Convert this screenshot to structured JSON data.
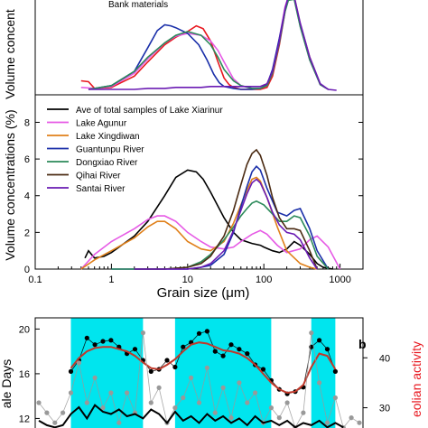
{
  "chart_data": [
    {
      "type": "line",
      "panel": "top",
      "annotation": "Bank materials",
      "ylabel": "Volume concent",
      "xscale": "log",
      "xlim": [
        0.1,
        2000
      ],
      "series": [
        {
          "color": "#e8171f",
          "x": [
            0.4,
            0.5,
            0.6,
            1,
            2,
            3,
            5,
            7,
            10,
            13,
            16,
            20,
            25,
            30,
            35,
            40,
            50,
            70,
            90,
            110,
            130,
            160,
            190,
            210,
            250,
            300,
            400,
            550,
            700
          ],
          "y": [
            1.0,
            0.9,
            0.2,
            0.3,
            1.5,
            3.0,
            4.8,
            5.6,
            6.2,
            6.8,
            6.5,
            5.2,
            3.0,
            1.3,
            0.6,
            0.3,
            0.1,
            0.1,
            0.1,
            0.3,
            1.5,
            4.8,
            8.3,
            9.9,
            9.9,
            7.0,
            3.5,
            0.6,
            0.1
          ]
        },
        {
          "color": "#e65ae5",
          "x": [
            0.4,
            0.6,
            1,
            2,
            3,
            5,
            7,
            10,
            15,
            20,
            25,
            30,
            40,
            50,
            70,
            90,
            110,
            130,
            160,
            190,
            210,
            250,
            300,
            400,
            550,
            700
          ],
          "y": [
            0.3,
            0.2,
            0.4,
            1.8,
            3.3,
            5.0,
            5.7,
            6.0,
            5.8,
            5.2,
            4.2,
            3.0,
            1.2,
            0.5,
            0.2,
            0.2,
            0.5,
            2.0,
            5.5,
            8.8,
            9.9,
            9.8,
            6.8,
            3.2,
            0.6,
            0.1
          ]
        },
        {
          "color": "#1a2fa9",
          "x": [
            0.5,
            1,
            2,
            3,
            4,
            5,
            6,
            7,
            10,
            14,
            18,
            22,
            26,
            30,
            40,
            50,
            70,
            90,
            110,
            130,
            160,
            190,
            210,
            250,
            300,
            400,
            550,
            700
          ],
          "y": [
            0.1,
            0.5,
            2.0,
            4.5,
            6.3,
            6.9,
            6.8,
            6.6,
            6.0,
            4.8,
            3.2,
            1.7,
            0.8,
            0.4,
            0.2,
            0.1,
            0.1,
            0.2,
            0.6,
            2.2,
            5.5,
            8.5,
            9.6,
            9.7,
            6.8,
            3.3,
            0.6,
            0.1
          ]
        },
        {
          "color": "#2c8a5a",
          "x": [
            0.5,
            1,
            2,
            3,
            5,
            7,
            10,
            15,
            20,
            25,
            30,
            40,
            50,
            70,
            90,
            110,
            130,
            160,
            190,
            210,
            250,
            300,
            400,
            550,
            700
          ],
          "y": [
            0.1,
            0.5,
            2.0,
            3.5,
            5.0,
            5.8,
            6.2,
            5.8,
            4.8,
            3.5,
            2.2,
            1.0,
            0.5,
            0.2,
            0.2,
            0.5,
            1.8,
            5.0,
            8.3,
            9.5,
            9.6,
            6.7,
            3.2,
            0.6,
            0.1
          ]
        },
        {
          "color": "#6a1bb3",
          "x": [
            0.5,
            1,
            2,
            3,
            5,
            7,
            10,
            15,
            20,
            30,
            40,
            50,
            70,
            90,
            110,
            130,
            160,
            190,
            210,
            250,
            300,
            400,
            550,
            700,
            900
          ],
          "y": [
            0.1,
            0.1,
            0.1,
            0.2,
            0.2,
            0.3,
            0.3,
            0.3,
            0.4,
            0.4,
            0.4,
            0.4,
            0.4,
            0.4,
            0.7,
            2.0,
            5.2,
            8.6,
            9.9,
            9.9,
            7.1,
            3.5,
            0.7,
            0.1,
            0.0
          ]
        }
      ]
    },
    {
      "type": "line",
      "panel": "middle",
      "xlabel": "Grain size (μm)",
      "ylabel": "Volume concentrations (%)",
      "xscale": "log",
      "xlim": [
        0.1,
        2000
      ],
      "ylim": [
        0,
        9.5
      ],
      "x_ticks": [
        "0.1",
        "1",
        "10",
        "100",
        "1000"
      ],
      "y_ticks": [
        "0",
        "2",
        "4",
        "6",
        "8"
      ],
      "legend_position": "top-left",
      "series": [
        {
          "name": "Ave of total samples of Lake Xiarinur",
          "color": "#000000",
          "x": [
            0.45,
            0.5,
            0.6,
            0.8,
            1,
            2,
            3,
            5,
            7,
            10,
            13,
            16,
            20,
            30,
            40,
            50,
            70,
            90,
            100,
            130,
            160,
            200,
            250,
            300,
            400,
            500,
            600,
            800
          ],
          "y": [
            0.6,
            1.0,
            0.6,
            0.7,
            0.9,
            1.8,
            2.6,
            4.0,
            5.0,
            5.4,
            5.3,
            4.9,
            4.2,
            2.8,
            2.0,
            1.6,
            1.4,
            1.3,
            1.2,
            1.0,
            0.9,
            1.1,
            1.5,
            1.3,
            0.8,
            0.3,
            0.1,
            0.0
          ]
        },
        {
          "name": "Lake Agunur",
          "color": "#e65ae5",
          "x": [
            0.4,
            0.6,
            1,
            2,
            3,
            4,
            5,
            7,
            10,
            15,
            20,
            30,
            40,
            50,
            70,
            90,
            110,
            150,
            200,
            300,
            400,
            500,
            700,
            1000
          ],
          "y": [
            0.0,
            0.8,
            1.5,
            2.2,
            2.7,
            2.9,
            2.9,
            2.6,
            2.0,
            1.5,
            1.2,
            1.1,
            1.2,
            1.5,
            1.9,
            2.1,
            1.9,
            1.3,
            0.9,
            1.1,
            1.6,
            1.8,
            1.2,
            0.0
          ]
        },
        {
          "name": "Lake Xingdiwan",
          "color": "#e0801a",
          "x": [
            0.4,
            0.6,
            1,
            2,
            3,
            4,
            5,
            7,
            10,
            15,
            20,
            30,
            40,
            50,
            60,
            70,
            80,
            90,
            110,
            150,
            200,
            300,
            400,
            500
          ],
          "y": [
            0.0,
            0.5,
            1.0,
            1.7,
            2.3,
            2.6,
            2.6,
            2.2,
            1.5,
            1.1,
            1.0,
            1.5,
            2.5,
            3.5,
            4.3,
            4.9,
            5.0,
            4.8,
            3.9,
            2.3,
            1.0,
            0.3,
            0.1,
            0.0
          ]
        },
        {
          "name": "Guantunpu River",
          "color": "#1a2fa9",
          "x": [
            1,
            2,
            5,
            10,
            15,
            20,
            30,
            40,
            50,
            60,
            70,
            80,
            90,
            110,
            150,
            200,
            250,
            300,
            400,
            500,
            700
          ],
          "y": [
            0.0,
            0.0,
            0.0,
            0.0,
            0.1,
            0.2,
            0.8,
            2.0,
            3.4,
            4.5,
            5.3,
            5.6,
            5.4,
            4.4,
            3.1,
            2.9,
            3.2,
            3.3,
            2.2,
            1.0,
            0.0
          ]
        },
        {
          "name": "Dongxiao River",
          "color": "#2c8a5a",
          "x": [
            1,
            2,
            5,
            10,
            15,
            20,
            30,
            40,
            50,
            60,
            70,
            80,
            100,
            130,
            160,
            200,
            250,
            300,
            400,
            500,
            700
          ],
          "y": [
            0.0,
            0.0,
            0.0,
            0.1,
            0.4,
            0.8,
            1.6,
            2.3,
            2.9,
            3.3,
            3.6,
            3.7,
            3.5,
            3.0,
            2.6,
            2.6,
            2.9,
            2.8,
            1.8,
            0.7,
            0.0
          ]
        },
        {
          "name": "Qihai River",
          "color": "#4a2a12",
          "x": [
            2,
            5,
            10,
            15,
            20,
            30,
            40,
            50,
            60,
            70,
            80,
            90,
            110,
            130,
            160,
            200,
            250,
            300,
            400,
            500
          ],
          "y": [
            0.0,
            0.0,
            0.1,
            0.3,
            0.7,
            1.8,
            3.2,
            4.6,
            5.7,
            6.3,
            6.5,
            6.2,
            5.1,
            3.9,
            2.8,
            2.2,
            2.2,
            2.1,
            1.0,
            0.0
          ]
        },
        {
          "name": "Santai River",
          "color": "#6a1bb3",
          "x": [
            2,
            5,
            10,
            15,
            20,
            30,
            40,
            50,
            60,
            70,
            80,
            90,
            110,
            130,
            160,
            200,
            250,
            300,
            400,
            500
          ],
          "y": [
            0.0,
            0.0,
            0.0,
            0.1,
            0.3,
            1.0,
            2.1,
            3.2,
            4.1,
            4.7,
            4.9,
            4.7,
            3.9,
            3.1,
            2.4,
            2.0,
            1.9,
            1.6,
            0.6,
            0.0
          ]
        }
      ]
    },
    {
      "type": "line",
      "panel": "bottom",
      "panel_label": "b",
      "ylabel": "ale Days",
      "y2label": "eolian activity",
      "x_index_range": [
        0,
        40
      ],
      "ylim": [
        10.5,
        21
      ],
      "y_ticks": [
        "20",
        "16",
        "12"
      ],
      "y2lim": [
        24.5,
        48
      ],
      "y2_ticks": [
        "40",
        "30"
      ],
      "shaded_x_ranges": [
        [
          4,
          13
        ],
        [
          17,
          29
        ],
        [
          34,
          37
        ]
      ],
      "shade_color": "#00e5ee",
      "series": [
        {
          "color": "#000000",
          "role": "dots",
          "axis": "left",
          "x": [
            4,
            5,
            6,
            7,
            8,
            9,
            10,
            11,
            12,
            13,
            14,
            15,
            16,
            17,
            18,
            19,
            20,
            21,
            22,
            23,
            24,
            25,
            26,
            27,
            28,
            29,
            30,
            31,
            32,
            33,
            34,
            35,
            36,
            37
          ],
          "y": [
            16.2,
            17.2,
            19.2,
            18.6,
            18.9,
            19.0,
            18.4,
            17.8,
            18.2,
            17.2,
            16.2,
            16.4,
            17.2,
            16.6,
            18.4,
            18.8,
            19.6,
            19.8,
            18.0,
            17.6,
            18.6,
            18.2,
            17.8,
            16.8,
            16.4,
            15.4,
            14.6,
            14.2,
            14.4,
            14.8,
            18.4,
            19.0,
            18.2,
            16.2
          ]
        },
        {
          "color": "#c0392b",
          "role": "trend",
          "axis": "left",
          "x": [
            4,
            5,
            6,
            7,
            8,
            9,
            10,
            11,
            12,
            13,
            14,
            15,
            16,
            17,
            18,
            19,
            20,
            21,
            22,
            23,
            24,
            25,
            26,
            27,
            28,
            29,
            30,
            31,
            32,
            33,
            34,
            35,
            36,
            37
          ],
          "y": [
            16.5,
            17.4,
            18.0,
            18.3,
            18.4,
            18.4,
            18.2,
            18.0,
            17.6,
            17.0,
            16.5,
            16.4,
            16.8,
            17.3,
            18.0,
            18.6,
            18.8,
            18.7,
            18.4,
            18.1,
            18.0,
            17.8,
            17.4,
            16.8,
            16.0,
            15.2,
            14.6,
            14.3,
            14.4,
            15.0,
            16.6,
            17.8,
            17.6,
            16.4
          ]
        },
        {
          "color": "#999999",
          "role": "dots",
          "axis": "right",
          "x": [
            0,
            1,
            2,
            3,
            4,
            5,
            6,
            7,
            8,
            9,
            10,
            11,
            12,
            13,
            14,
            15,
            16,
            17,
            18,
            19,
            20,
            21,
            22,
            23,
            24,
            25,
            26,
            27,
            28,
            29,
            30,
            31,
            32,
            33,
            34,
            35,
            36,
            37,
            38,
            39,
            40
          ],
          "y": [
            31,
            29,
            27,
            29,
            33,
            39,
            31,
            36,
            30,
            33,
            27,
            33,
            29,
            45,
            31,
            34,
            27,
            30,
            32,
            36,
            31,
            38,
            29,
            34,
            28,
            35,
            31,
            33,
            27,
            30,
            28,
            31,
            26,
            29,
            45,
            35,
            27,
            32,
            26,
            28,
            27
          ]
        },
        {
          "color": "#000000",
          "role": "trend",
          "axis": "left",
          "x": [
            0,
            1,
            2,
            3,
            4,
            5,
            6,
            7,
            8,
            9,
            10,
            11,
            12,
            13,
            14,
            15,
            16,
            17,
            18,
            19,
            20,
            21,
            22,
            23,
            24,
            25,
            26,
            27,
            28,
            29,
            30,
            31,
            32,
            33,
            34,
            35,
            36,
            37,
            38
          ],
          "y": [
            11.8,
            11.4,
            11.2,
            11.4,
            12.4,
            13.0,
            12.0,
            13.2,
            12.6,
            12.4,
            12.8,
            12.2,
            12.4,
            12.0,
            12.8,
            12.4,
            11.6,
            12.6,
            11.8,
            12.2,
            11.6,
            12.4,
            11.8,
            12.2,
            11.6,
            12.0,
            11.4,
            12.2,
            11.6,
            11.8,
            11.4,
            11.8,
            11.2,
            11.6,
            11.4,
            11.8,
            11.2,
            11.6,
            11.2
          ]
        }
      ]
    }
  ]
}
